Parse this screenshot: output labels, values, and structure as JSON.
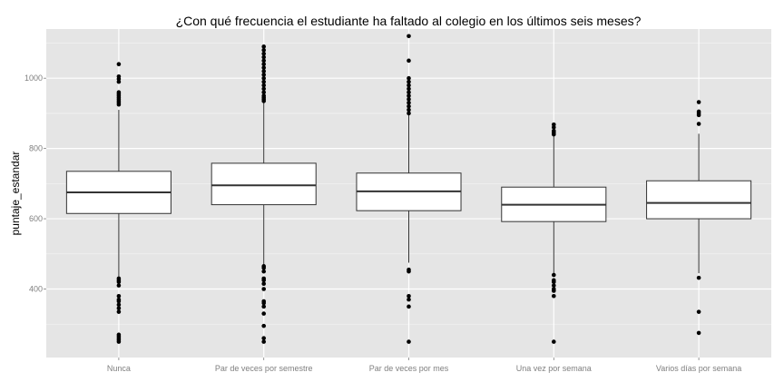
{
  "chart_data": {
    "type": "boxplot",
    "title": "¿Con qué frecuencia el estudiante ha faltado al colegio en los últimos seis meses?",
    "xlabel": "",
    "ylabel": "puntaje_estandar",
    "ylim": [
      205,
      1140
    ],
    "yticks": [
      400,
      600,
      800,
      1000
    ],
    "grid": true,
    "categories": [
      "Nunca",
      "Par de veces por semestre",
      "Par de veces por mes",
      "Una vez por semana",
      "Varios días por semana"
    ],
    "boxes": [
      {
        "q1": 615,
        "median": 675,
        "q3": 735,
        "whisker_low": 435,
        "whisker_high": 910,
        "outliers": [
          1040,
          1005,
          998,
          990,
          960,
          955,
          950,
          945,
          940,
          935,
          930,
          925,
          430,
          425,
          420,
          410,
          380,
          370,
          365,
          355,
          345,
          335,
          270,
          265,
          260,
          255,
          250
        ]
      },
      {
        "q1": 640,
        "median": 695,
        "q3": 758,
        "whisker_low": 470,
        "whisker_high": 930,
        "outliers": [
          1090,
          1080,
          1070,
          1060,
          1050,
          1040,
          1030,
          1020,
          1010,
          1000,
          990,
          980,
          970,
          960,
          950,
          945,
          940,
          935,
          465,
          460,
          450,
          430,
          425,
          415,
          400,
          365,
          360,
          350,
          330,
          295,
          260,
          250
        ]
      },
      {
        "q1": 623,
        "median": 678,
        "q3": 730,
        "whisker_low": 475,
        "whisker_high": 900,
        "outliers": [
          1120,
          1050,
          1000,
          990,
          980,
          970,
          960,
          950,
          940,
          930,
          920,
          910,
          900,
          455,
          450,
          380,
          370,
          350,
          250
        ]
      },
      {
        "q1": 592,
        "median": 640,
        "q3": 690,
        "whisker_low": 445,
        "whisker_high": 835,
        "outliers": [
          868,
          860,
          850,
          845,
          840,
          440,
          425,
          420,
          410,
          400,
          395,
          380,
          250
        ]
      },
      {
        "q1": 600,
        "median": 645,
        "q3": 708,
        "whisker_low": 445,
        "whisker_high": 842,
        "outliers": [
          932,
          905,
          900,
          895,
          870,
          432,
          335,
          275
        ]
      }
    ]
  }
}
